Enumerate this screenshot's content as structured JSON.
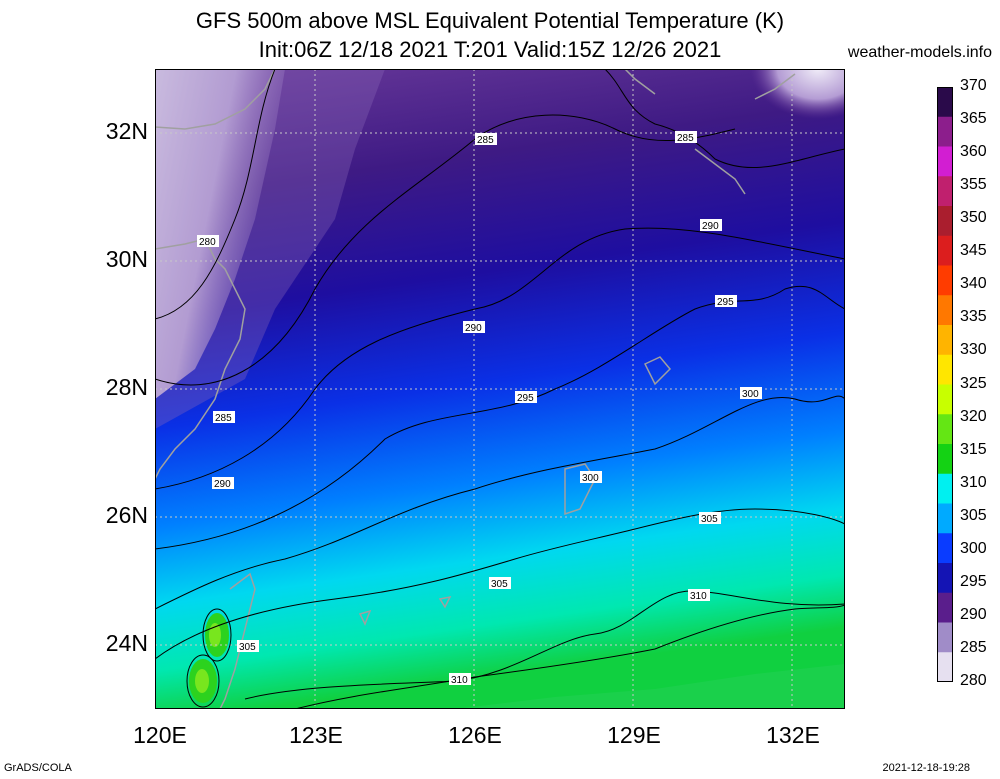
{
  "title": {
    "line1": "GFS 500m above MSL Equivalent Potential Temperature (K)",
    "line2": "Init:06Z 12/18 2021 T:201 Valid:15Z 12/26 2021",
    "site": "weather-models.info"
  },
  "footer": {
    "left": "GrADS/COLA",
    "right": "2021-12-18-19:28"
  },
  "axes": {
    "lat_labels": [
      "32N",
      "30N",
      "28N",
      "26N",
      "24N"
    ],
    "lon_labels": [
      "120E",
      "123E",
      "126E",
      "129E",
      "132E"
    ]
  },
  "contour_labels": [
    "280",
    "285",
    "285",
    "285",
    "290",
    "290",
    "290",
    "295",
    "295",
    "300",
    "300",
    "305",
    "305",
    "305",
    "310",
    "310"
  ],
  "colorbar": {
    "labels": [
      "370",
      "365",
      "360",
      "355",
      "350",
      "345",
      "340",
      "335",
      "330",
      "325",
      "320",
      "315",
      "310",
      "305",
      "300",
      "295",
      "290",
      "285",
      "280"
    ],
    "colors": [
      "#2a0a4a",
      "#8c1e8c",
      "#d21ed2",
      "#c0206e",
      "#aa1e2e",
      "#dc1e1e",
      "#ff3c00",
      "#ff7800",
      "#ffb400",
      "#ffe600",
      "#c8ff00",
      "#64e614",
      "#14d214",
      "#00f0f0",
      "#00aaff",
      "#0a3cff",
      "#1414b4",
      "#5a1e8c",
      "#a08cc8",
      "#e6e0f0"
    ]
  }
}
